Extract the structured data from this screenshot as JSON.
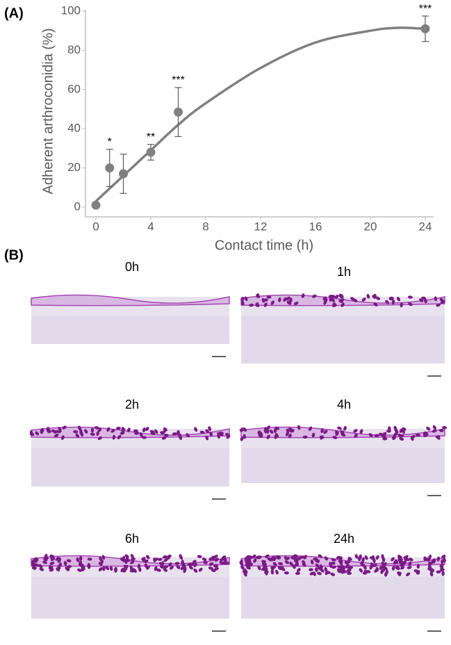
{
  "chart_data": {
    "type": "scatter",
    "panel_label": "(A)",
    "x_label": "Contact time (h)",
    "y_label": "Adherent arthroconidia (%)",
    "xlim": [
      0,
      24
    ],
    "xticks": [
      0,
      4,
      8,
      12,
      16,
      20,
      24
    ],
    "ylim": [
      0,
      100
    ],
    "yticks": [
      0,
      20,
      40,
      60,
      80,
      100
    ],
    "series": [
      {
        "color": "#808080",
        "x": [
          0,
          1,
          2,
          4,
          6,
          24
        ],
        "values": [
          1,
          20,
          17,
          28,
          48.5,
          91
        ],
        "errors": [
          0,
          9.5,
          10,
          4,
          12.5,
          6.5
        ],
        "significance": [
          null,
          "*",
          null,
          "**",
          "***",
          "***"
        ]
      }
    ],
    "fit": {
      "color": "#7f7f7f",
      "x": [
        0,
        2,
        4,
        6,
        8,
        12,
        16,
        20,
        22,
        24
      ],
      "values": [
        3,
        16,
        29,
        42,
        53,
        71,
        84,
        90,
        91.5,
        91
      ]
    }
  },
  "micrographs": {
    "panel_label": "(B)",
    "labels": [
      "0h",
      "1h",
      "2h",
      "4h",
      "6h",
      "24h"
    ]
  }
}
